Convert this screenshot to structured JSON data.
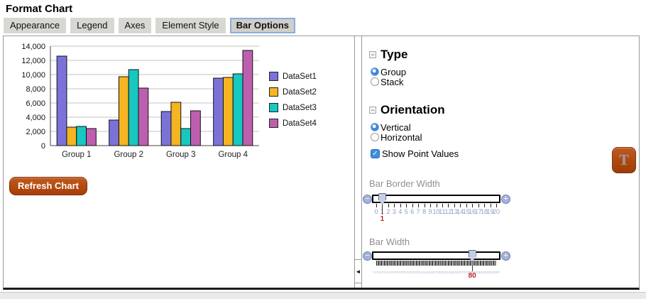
{
  "window_title": "Format Chart",
  "tabs": [
    {
      "label": "Appearance",
      "selected": false
    },
    {
      "label": "Legend",
      "selected": false
    },
    {
      "label": "Axes",
      "selected": false
    },
    {
      "label": "Element Style",
      "selected": false
    },
    {
      "label": "Bar Options",
      "selected": true
    }
  ],
  "chart_data": {
    "type": "bar",
    "categories": [
      "Group 1",
      "Group 2",
      "Group 3",
      "Group 4"
    ],
    "series": [
      {
        "name": "DataSet1",
        "color": "#7b72d9",
        "values": [
          12600,
          3600,
          4800,
          9500
        ]
      },
      {
        "name": "DataSet2",
        "color": "#f5b421",
        "values": [
          2600,
          9700,
          6100,
          9600
        ]
      },
      {
        "name": "DataSet3",
        "color": "#17c8c0",
        "values": [
          2700,
          10700,
          2400,
          10100
        ]
      },
      {
        "name": "DataSet4",
        "color": "#bd5fae",
        "values": [
          2400,
          8100,
          4900,
          13400
        ]
      }
    ],
    "ylim": [
      0,
      14000
    ],
    "ytick_step": 2000,
    "grid": true,
    "legend_position": "right"
  },
  "left_panel": {
    "refresh_button_label": "Refresh Chart"
  },
  "right_panel": {
    "type_section": {
      "title": "Type",
      "options": [
        {
          "label": "Group",
          "selected": true
        },
        {
          "label": "Stack",
          "selected": false
        }
      ]
    },
    "orientation_section": {
      "title": "Orientation",
      "options": [
        {
          "label": "Vertical",
          "selected": true
        },
        {
          "label": "Horizontal",
          "selected": false
        }
      ]
    },
    "show_point_values": {
      "label": "Show Point Values",
      "checked": true
    },
    "bar_border_width_slider": {
      "label": "Bar Border Width",
      "min": 0,
      "max": 20,
      "value": 1
    },
    "bar_width_slider": {
      "label": "Bar Width",
      "min": 0,
      "max": 100,
      "value": 80
    },
    "text_button_label": "T"
  },
  "icons": {
    "collapse": "−",
    "minus": "−",
    "plus": "+",
    "check": "✓",
    "panel_collapse": "◄"
  },
  "colors": {
    "accent_blue": "#3d8de0",
    "button_orange": "#a63e07",
    "slider_value_red": "#c2242c",
    "tick_label_blue": "#8c9cc8"
  }
}
